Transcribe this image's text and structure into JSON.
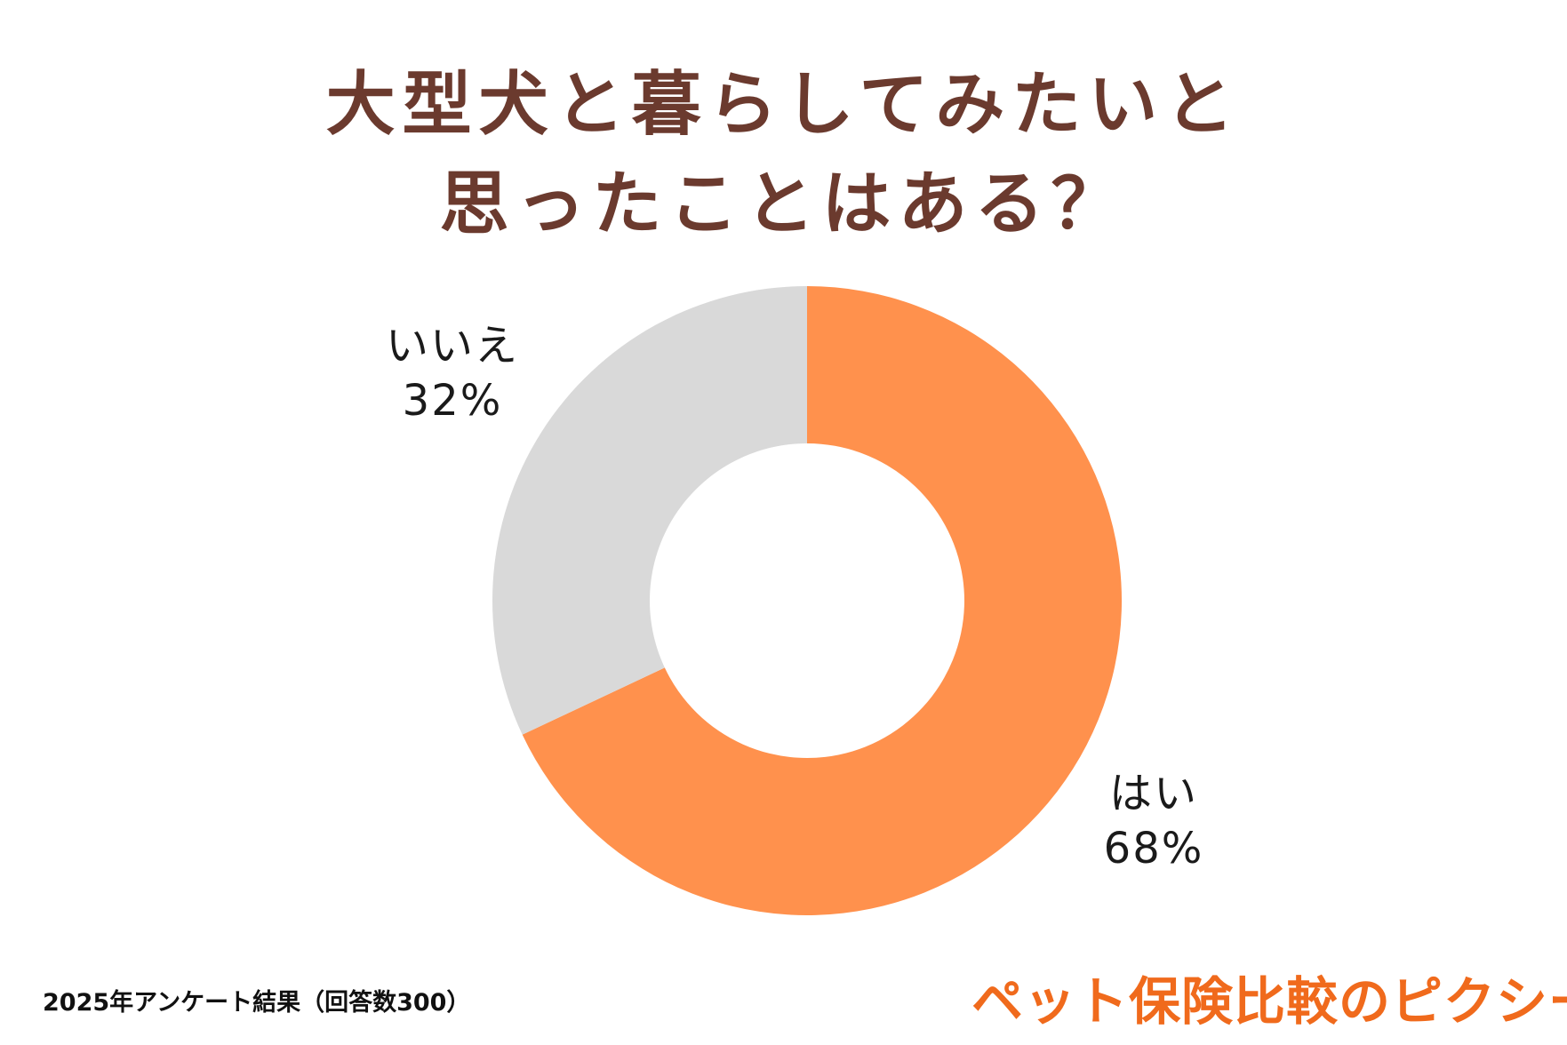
{
  "title": {
    "line1": "大型犬と暮らしてみたいと",
    "line2": "思ったことはある？"
  },
  "chart_data": {
    "type": "pie",
    "style": "donut",
    "slices": [
      {
        "label": "はい",
        "value": 68,
        "value_label": "68%",
        "color": "#ff914d"
      },
      {
        "label": "いいえ",
        "value": 32,
        "value_label": "32%",
        "color": "#d9d9d9"
      }
    ]
  },
  "footnote": "2025年アンケート結果（回答数300）",
  "brand": "ペット保険比較のピクシー",
  "colors": {
    "title": "#6b3a2e",
    "brand": "#f06a1c"
  }
}
